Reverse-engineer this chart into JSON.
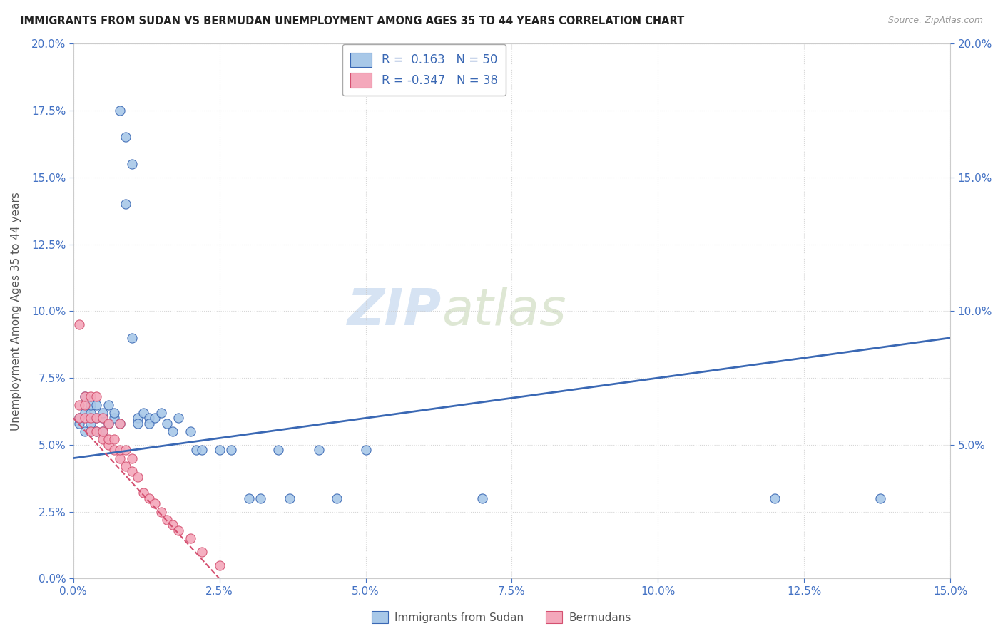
{
  "title": "IMMIGRANTS FROM SUDAN VS BERMUDAN UNEMPLOYMENT AMONG AGES 35 TO 44 YEARS CORRELATION CHART",
  "source": "Source: ZipAtlas.com",
  "xlim": [
    0,
    0.15
  ],
  "ylim": [
    0,
    0.2
  ],
  "legend_label1": "Immigrants from Sudan",
  "legend_label2": "Bermudans",
  "r1": "0.163",
  "n1": "50",
  "r2": "-0.347",
  "n2": "38",
  "color1": "#a8c8e8",
  "color2": "#f4a8bb",
  "line_color1": "#3a68b4",
  "line_color2": "#d45070",
  "watermark_zip": "ZIP",
  "watermark_atlas": "atlas",
  "title_color": "#222222",
  "axis_label_color": "#4472c4",
  "scatter1_x": [
    0.001,
    0.001,
    0.002,
    0.002,
    0.002,
    0.003,
    0.003,
    0.003,
    0.003,
    0.004,
    0.004,
    0.004,
    0.005,
    0.005,
    0.005,
    0.006,
    0.006,
    0.007,
    0.007,
    0.008,
    0.008,
    0.009,
    0.009,
    0.01,
    0.01,
    0.011,
    0.011,
    0.012,
    0.013,
    0.013,
    0.014,
    0.015,
    0.016,
    0.017,
    0.018,
    0.02,
    0.021,
    0.022,
    0.025,
    0.027,
    0.03,
    0.032,
    0.035,
    0.037,
    0.042,
    0.045,
    0.05,
    0.07,
    0.12,
    0.138
  ],
  "scatter1_y": [
    0.058,
    0.06,
    0.055,
    0.062,
    0.068,
    0.055,
    0.058,
    0.062,
    0.065,
    0.055,
    0.06,
    0.065,
    0.055,
    0.06,
    0.062,
    0.058,
    0.065,
    0.06,
    0.062,
    0.058,
    0.175,
    0.165,
    0.14,
    0.155,
    0.09,
    0.06,
    0.058,
    0.062,
    0.06,
    0.058,
    0.06,
    0.062,
    0.058,
    0.055,
    0.06,
    0.055,
    0.048,
    0.048,
    0.048,
    0.048,
    0.03,
    0.03,
    0.048,
    0.03,
    0.048,
    0.03,
    0.048,
    0.03,
    0.03,
    0.03
  ],
  "scatter2_x": [
    0.001,
    0.001,
    0.001,
    0.002,
    0.002,
    0.002,
    0.003,
    0.003,
    0.003,
    0.004,
    0.004,
    0.004,
    0.005,
    0.005,
    0.005,
    0.006,
    0.006,
    0.006,
    0.007,
    0.007,
    0.008,
    0.008,
    0.008,
    0.009,
    0.009,
    0.01,
    0.01,
    0.011,
    0.012,
    0.013,
    0.014,
    0.015,
    0.016,
    0.017,
    0.018,
    0.02,
    0.022,
    0.025
  ],
  "scatter2_y": [
    0.06,
    0.065,
    0.095,
    0.06,
    0.065,
    0.068,
    0.055,
    0.06,
    0.068,
    0.055,
    0.06,
    0.068,
    0.052,
    0.055,
    0.06,
    0.05,
    0.052,
    0.058,
    0.048,
    0.052,
    0.045,
    0.048,
    0.058,
    0.042,
    0.048,
    0.04,
    0.045,
    0.038,
    0.032,
    0.03,
    0.028,
    0.025,
    0.022,
    0.02,
    0.018,
    0.015,
    0.01,
    0.005
  ],
  "trendline1_x0": 0.0,
  "trendline1_y0": 0.045,
  "trendline1_x1": 0.15,
  "trendline1_y1": 0.09,
  "trendline2_x0": 0.0,
  "trendline2_y0": 0.06,
  "trendline2_x1": 0.025,
  "trendline2_y1": 0.0
}
